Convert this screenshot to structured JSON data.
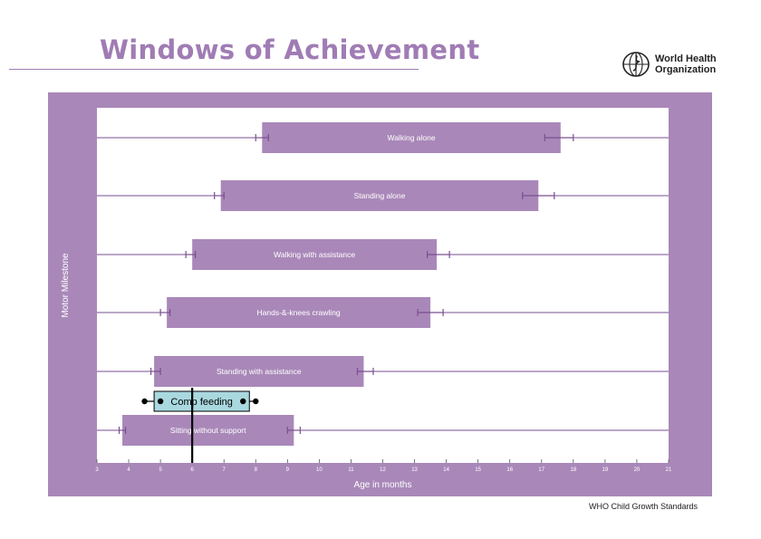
{
  "title": "Windows of Achievement",
  "logo": {
    "line1": "World Health",
    "line2": "Organization"
  },
  "footnote": "WHO Child Growth Standards",
  "colors": {
    "panel": "#a988b9",
    "bar": "#a988b9",
    "bar_text": "#ffffff",
    "whisker": "#7a4f91",
    "highlight_fill": "#a9d8df",
    "highlight_stroke": "#000000",
    "marker_line": "#000000"
  },
  "chart_data": {
    "type": "bar",
    "orientation": "horizontal-range",
    "xlabel": "Age in months",
    "ylabel": "Motor Milestone",
    "xlim": [
      3,
      21
    ],
    "xticks": [
      3,
      4,
      5,
      6,
      7,
      8,
      9,
      10,
      11,
      12,
      13,
      14,
      15,
      16,
      17,
      18,
      19,
      20,
      21
    ],
    "grid": false,
    "milestones": [
      {
        "name": "Walking alone",
        "start": 8.2,
        "end": 17.6,
        "ci_start": [
          8.0,
          8.4
        ],
        "ci_end": [
          17.1,
          18.0
        ]
      },
      {
        "name": "Standing alone",
        "start": 6.9,
        "end": 16.9,
        "ci_start": [
          6.7,
          7.0
        ],
        "ci_end": [
          16.4,
          17.4
        ]
      },
      {
        "name": "Walking with assistance",
        "start": 6.0,
        "end": 13.7,
        "ci_start": [
          5.8,
          6.1
        ],
        "ci_end": [
          13.4,
          14.1
        ]
      },
      {
        "name": "Hands-&-knees crawling",
        "start": 5.2,
        "end": 13.5,
        "ci_start": [
          5.0,
          5.3
        ],
        "ci_end": [
          13.1,
          13.9
        ]
      },
      {
        "name": "Standing with assistance",
        "start": 4.8,
        "end": 11.4,
        "ci_start": [
          4.7,
          5.0
        ],
        "ci_end": [
          11.2,
          11.7
        ]
      },
      {
        "name": "Sitting without support",
        "start": 3.8,
        "end": 9.2,
        "ci_start": [
          3.7,
          3.9
        ],
        "ci_end": [
          9.0,
          9.4
        ]
      }
    ],
    "annotations": {
      "highlight": {
        "label": "Comp feeding",
        "start": 4.8,
        "end": 7.8,
        "whisker_start": [
          4.5,
          5.0
        ],
        "whisker_end": [
          7.6,
          8.0
        ]
      },
      "vertical_line_x": 6
    }
  }
}
